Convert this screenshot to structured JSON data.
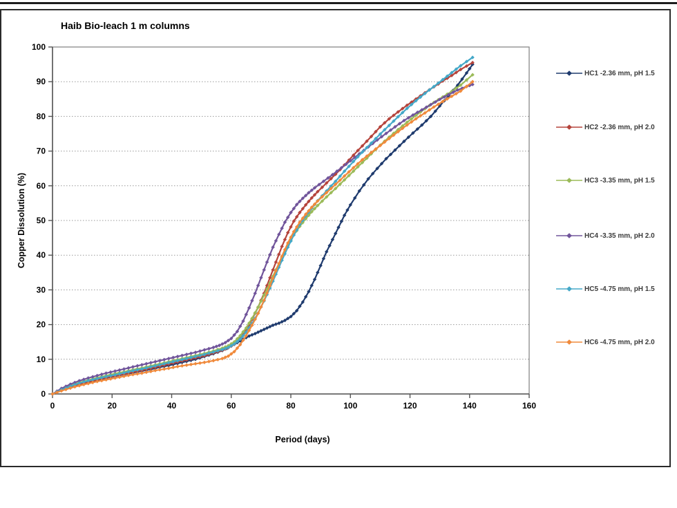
{
  "page": {
    "title": "Haib Bio-leach 1 m columns"
  },
  "chart_data": {
    "type": "line",
    "title": "Haib Bio-leach 1 m columns",
    "xlabel": "Period (days)",
    "ylabel": "Copper Dissolution (%)",
    "xlim": [
      0,
      160
    ],
    "ylim": [
      0,
      100
    ],
    "x_ticks": [
      0,
      20,
      40,
      60,
      80,
      100,
      120,
      140,
      160
    ],
    "y_ticks": [
      0,
      10,
      20,
      30,
      40,
      50,
      60,
      70,
      80,
      90,
      100
    ],
    "grid": "horizontal-dotted",
    "legend_position": "right",
    "marker": "diamond",
    "series": [
      {
        "name": "HC1 -2.36 mm, pH 1.5",
        "color": "#1F3B6E",
        "points": [
          [
            0,
            0
          ],
          [
            3,
            1
          ],
          [
            6,
            1.8
          ],
          [
            9,
            2.6
          ],
          [
            12,
            3.3
          ],
          [
            15,
            4
          ],
          [
            18,
            4.6
          ],
          [
            21,
            5.1
          ],
          [
            24,
            5.6
          ],
          [
            27,
            6.1
          ],
          [
            30,
            6.6
          ],
          [
            33,
            7.1
          ],
          [
            36,
            7.7
          ],
          [
            39,
            8.2
          ],
          [
            42,
            8.8
          ],
          [
            45,
            9.4
          ],
          [
            48,
            10
          ],
          [
            51,
            10.8
          ],
          [
            54,
            11.6
          ],
          [
            57,
            12.5
          ],
          [
            60,
            13.8
          ],
          [
            62,
            14.8
          ],
          [
            64,
            15.8
          ],
          [
            66,
            16.7
          ],
          [
            68,
            17.4
          ],
          [
            70,
            18.2
          ],
          [
            72,
            19
          ],
          [
            74,
            19.8
          ],
          [
            76,
            20.4
          ],
          [
            78,
            21.2
          ],
          [
            80,
            22.3
          ],
          [
            82,
            24
          ],
          [
            84,
            26.5
          ],
          [
            86,
            29.5
          ],
          [
            88,
            33
          ],
          [
            90,
            37
          ],
          [
            92,
            41
          ],
          [
            94,
            44.5
          ],
          [
            96,
            48
          ],
          [
            98,
            51.5
          ],
          [
            100,
            54.5
          ],
          [
            103,
            58.5
          ],
          [
            106,
            62
          ],
          [
            109,
            65
          ],
          [
            112,
            67.8
          ],
          [
            115,
            70.3
          ],
          [
            118,
            72.8
          ],
          [
            121,
            75.2
          ],
          [
            124,
            77.5
          ],
          [
            127,
            80
          ],
          [
            130,
            83
          ],
          [
            133,
            86
          ],
          [
            136,
            89
          ],
          [
            139,
            92.5
          ],
          [
            141,
            95
          ]
        ]
      },
      {
        "name": "HC2 -2.36 mm, pH 2.0",
        "color": "#B5443C",
        "points": [
          [
            0,
            0
          ],
          [
            3,
            1.1
          ],
          [
            6,
            2
          ],
          [
            9,
            2.8
          ],
          [
            12,
            3.5
          ],
          [
            15,
            4.1
          ],
          [
            18,
            4.7
          ],
          [
            21,
            5.2
          ],
          [
            24,
            5.7
          ],
          [
            27,
            6.3
          ],
          [
            30,
            6.8
          ],
          [
            33,
            7.4
          ],
          [
            36,
            8
          ],
          [
            39,
            8.6
          ],
          [
            42,
            9.2
          ],
          [
            45,
            9.8
          ],
          [
            48,
            10.4
          ],
          [
            51,
            11
          ],
          [
            54,
            11.8
          ],
          [
            57,
            12.6
          ],
          [
            59,
            13.3
          ],
          [
            61,
            14.3
          ],
          [
            63,
            16
          ],
          [
            65,
            18.5
          ],
          [
            67,
            21.5
          ],
          [
            69,
            25
          ],
          [
            71,
            29
          ],
          [
            73,
            33.5
          ],
          [
            75,
            38
          ],
          [
            77,
            42.5
          ],
          [
            79,
            46.5
          ],
          [
            81,
            49.8
          ],
          [
            83,
            52.3
          ],
          [
            85,
            54.5
          ],
          [
            87,
            56.5
          ],
          [
            89,
            58.3
          ],
          [
            92,
            60.8
          ],
          [
            95,
            63.3
          ],
          [
            98,
            66
          ],
          [
            101,
            68.8
          ],
          [
            104,
            71.5
          ],
          [
            107,
            74.2
          ],
          [
            110,
            77
          ],
          [
            113,
            79.3
          ],
          [
            116,
            81.3
          ],
          [
            119,
            83.2
          ],
          [
            122,
            85
          ],
          [
            125,
            86.8
          ],
          [
            128,
            88.5
          ],
          [
            131,
            90.2
          ],
          [
            134,
            91.8
          ],
          [
            137,
            93.5
          ],
          [
            141,
            95.5
          ]
        ]
      },
      {
        "name": "HC3 -3.35 mm, pH 1.5",
        "color": "#9BBB59",
        "points": [
          [
            0,
            0
          ],
          [
            3,
            1.3
          ],
          [
            6,
            2.4
          ],
          [
            9,
            3.3
          ],
          [
            12,
            4
          ],
          [
            15,
            4.7
          ],
          [
            18,
            5.3
          ],
          [
            21,
            5.9
          ],
          [
            24,
            6.4
          ],
          [
            27,
            7
          ],
          [
            30,
            7.5
          ],
          [
            33,
            8.1
          ],
          [
            36,
            8.7
          ],
          [
            39,
            9.3
          ],
          [
            42,
            9.9
          ],
          [
            45,
            10.5
          ],
          [
            48,
            11.1
          ],
          [
            51,
            11.7
          ],
          [
            54,
            12.4
          ],
          [
            57,
            13.2
          ],
          [
            59,
            13.9
          ],
          [
            61,
            15
          ],
          [
            63,
            16.8
          ],
          [
            65,
            19
          ],
          [
            67,
            21.8
          ],
          [
            69,
            25
          ],
          [
            71,
            28.5
          ],
          [
            73,
            32
          ],
          [
            75,
            35.8
          ],
          [
            77,
            39.3
          ],
          [
            79,
            42.7
          ],
          [
            81,
            45.8
          ],
          [
            83,
            48.3
          ],
          [
            85,
            50.5
          ],
          [
            87,
            52.5
          ],
          [
            89,
            54.3
          ],
          [
            92,
            56.8
          ],
          [
            95,
            59.2
          ],
          [
            98,
            61.7
          ],
          [
            101,
            64.2
          ],
          [
            104,
            66.7
          ],
          [
            107,
            69.2
          ],
          [
            110,
            71.7
          ],
          [
            113,
            74
          ],
          [
            116,
            76.2
          ],
          [
            119,
            78.3
          ],
          [
            122,
            80.3
          ],
          [
            125,
            82.2
          ],
          [
            128,
            84
          ],
          [
            131,
            85.6
          ],
          [
            134,
            87.2
          ],
          [
            137,
            89
          ],
          [
            141,
            92
          ]
        ]
      },
      {
        "name": "HC4 -3.35 mm, pH 2.0",
        "color": "#71559B",
        "points": [
          [
            0,
            0
          ],
          [
            3,
            1.6
          ],
          [
            6,
            2.8
          ],
          [
            9,
            3.8
          ],
          [
            12,
            4.6
          ],
          [
            15,
            5.3
          ],
          [
            18,
            6
          ],
          [
            21,
            6.6
          ],
          [
            24,
            7.2
          ],
          [
            27,
            7.8
          ],
          [
            30,
            8.4
          ],
          [
            33,
            9
          ],
          [
            36,
            9.6
          ],
          [
            39,
            10.2
          ],
          [
            42,
            10.8
          ],
          [
            45,
            11.4
          ],
          [
            48,
            12
          ],
          [
            51,
            12.7
          ],
          [
            54,
            13.4
          ],
          [
            56,
            14
          ],
          [
            58,
            14.8
          ],
          [
            60,
            16
          ],
          [
            62,
            18
          ],
          [
            64,
            21
          ],
          [
            66,
            24.8
          ],
          [
            68,
            29
          ],
          [
            70,
            33.5
          ],
          [
            72,
            38
          ],
          [
            74,
            42.3
          ],
          [
            76,
            46
          ],
          [
            78,
            49.5
          ],
          [
            80,
            52.3
          ],
          [
            82,
            54.6
          ],
          [
            84,
            56.4
          ],
          [
            86,
            58
          ],
          [
            88,
            59.4
          ],
          [
            91,
            61.3
          ],
          [
            94,
            63.2
          ],
          [
            97,
            65.2
          ],
          [
            100,
            67.2
          ],
          [
            103,
            69.2
          ],
          [
            106,
            71.2
          ],
          [
            109,
            73.2
          ],
          [
            112,
            75.1
          ],
          [
            115,
            77
          ],
          [
            118,
            78.8
          ],
          [
            121,
            80.4
          ],
          [
            124,
            81.9
          ],
          [
            127,
            83.4
          ],
          [
            130,
            84.9
          ],
          [
            133,
            86.3
          ],
          [
            136,
            87.6
          ],
          [
            139,
            88.6
          ],
          [
            141,
            89.2
          ]
        ]
      },
      {
        "name": "HC5 -4.75 mm, pH 1.5",
        "color": "#44A8C8",
        "points": [
          [
            0,
            0
          ],
          [
            3,
            1.2
          ],
          [
            6,
            2.2
          ],
          [
            9,
            3.1
          ],
          [
            12,
            3.8
          ],
          [
            15,
            4.4
          ],
          [
            18,
            5
          ],
          [
            21,
            5.5
          ],
          [
            24,
            6.1
          ],
          [
            27,
            6.7
          ],
          [
            30,
            7.2
          ],
          [
            33,
            7.8
          ],
          [
            36,
            8.4
          ],
          [
            39,
            9
          ],
          [
            42,
            9.6
          ],
          [
            45,
            10.2
          ],
          [
            48,
            10.8
          ],
          [
            51,
            11.4
          ],
          [
            54,
            12.1
          ],
          [
            57,
            12.8
          ],
          [
            59,
            13.4
          ],
          [
            61,
            14.4
          ],
          [
            63,
            15.8
          ],
          [
            65,
            17.8
          ],
          [
            67,
            20.3
          ],
          [
            69,
            23.3
          ],
          [
            71,
            26.8
          ],
          [
            73,
            30.5
          ],
          [
            75,
            34.5
          ],
          [
            77,
            38.5
          ],
          [
            79,
            42.3
          ],
          [
            81,
            45.8
          ],
          [
            83,
            48.8
          ],
          [
            85,
            51.3
          ],
          [
            87,
            53.5
          ],
          [
            89,
            55.7
          ],
          [
            92,
            58.5
          ],
          [
            95,
            61.3
          ],
          [
            98,
            64.2
          ],
          [
            101,
            67
          ],
          [
            104,
            69.7
          ],
          [
            107,
            72.3
          ],
          [
            110,
            74.9
          ],
          [
            113,
            77.4
          ],
          [
            116,
            79.9
          ],
          [
            119,
            82.3
          ],
          [
            122,
            84.5
          ],
          [
            125,
            86.6
          ],
          [
            128,
            88.6
          ],
          [
            131,
            90.6
          ],
          [
            134,
            92.6
          ],
          [
            137,
            94.6
          ],
          [
            141,
            97
          ]
        ]
      },
      {
        "name": "HC6 -4.75 mm, pH 2.0",
        "color": "#F08A3C",
        "points": [
          [
            0,
            0
          ],
          [
            3,
            0.9
          ],
          [
            6,
            1.7
          ],
          [
            9,
            2.4
          ],
          [
            12,
            3
          ],
          [
            15,
            3.6
          ],
          [
            18,
            4.1
          ],
          [
            21,
            4.6
          ],
          [
            24,
            5.1
          ],
          [
            27,
            5.6
          ],
          [
            30,
            6
          ],
          [
            33,
            6.5
          ],
          [
            36,
            7
          ],
          [
            39,
            7.4
          ],
          [
            42,
            7.9
          ],
          [
            45,
            8.3
          ],
          [
            48,
            8.7
          ],
          [
            51,
            9.1
          ],
          [
            54,
            9.6
          ],
          [
            57,
            10.2
          ],
          [
            59,
            10.9
          ],
          [
            61,
            12.2
          ],
          [
            63,
            14.2
          ],
          [
            65,
            16.8
          ],
          [
            67,
            19.8
          ],
          [
            69,
            23.2
          ],
          [
            71,
            27
          ],
          [
            73,
            31.2
          ],
          [
            75,
            35.5
          ],
          [
            77,
            39.7
          ],
          [
            79,
            43.5
          ],
          [
            81,
            46.8
          ],
          [
            83,
            49.5
          ],
          [
            85,
            51.8
          ],
          [
            87,
            53.8
          ],
          [
            89,
            55.6
          ],
          [
            92,
            58
          ],
          [
            95,
            60.4
          ],
          [
            98,
            62.8
          ],
          [
            101,
            65.2
          ],
          [
            104,
            67.5
          ],
          [
            107,
            69.6
          ],
          [
            110,
            71.6
          ],
          [
            113,
            73.6
          ],
          [
            116,
            75.6
          ],
          [
            119,
            77.5
          ],
          [
            122,
            79.3
          ],
          [
            125,
            81
          ],
          [
            128,
            82.7
          ],
          [
            131,
            84.3
          ],
          [
            134,
            85.8
          ],
          [
            137,
            87.3
          ],
          [
            141,
            90
          ]
        ]
      }
    ]
  },
  "style_colors": {
    "axis": "#555555",
    "plot_border": "#7f7f7f",
    "gridline": "#999999",
    "legend_text": "#3b3b3b"
  }
}
